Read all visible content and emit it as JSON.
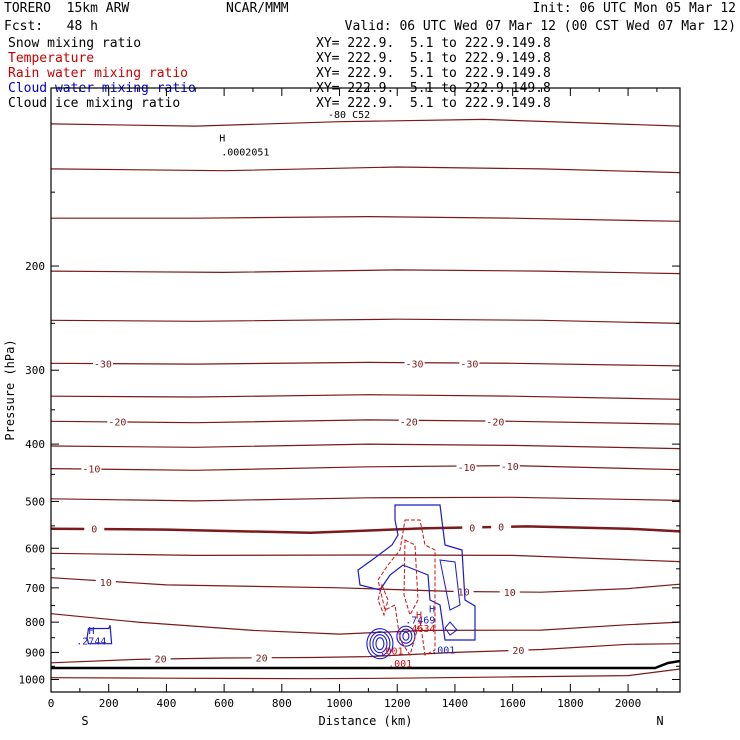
{
  "header": {
    "model": "TORERO  15km ARW",
    "org": "NCAR/MMM",
    "init": "Init: 06 UTC Mon 05 Mar 12",
    "fcst": "Fcst:   48 h",
    "valid": "Valid: 06 UTC Wed 07 Mar 12 (00 CST Wed 07 Mar 12)"
  },
  "fields": [
    {
      "name": "Snow mixing ratio",
      "xy": "XY= 222.9.  5.1 to 222.9.149.8",
      "color": "#000000"
    },
    {
      "name": "Temperature",
      "xy": "XY= 222.9.  5.1 to 222.9.149.8",
      "color": "#cc0000"
    },
    {
      "name": "Rain water mixing ratio",
      "xy": "XY= 222.9.  5.1 to 222.9.149.8",
      "color": "#cc0000"
    },
    {
      "name": "Cloud water mixing ratio",
      "xy": "XY= 222.9.  5.1 to 222.9.149.8",
      "color": "#0000cc"
    },
    {
      "name": "Cloud ice mixing ratio",
      "xy": "XY= 222.9.  5.1 to 222.9.149.8",
      "color": "#000000"
    }
  ],
  "chart_data": {
    "type": "line",
    "xlabel": "Distance (km)",
    "ylabel": "Pressure (hPa)",
    "xlim": [
      0,
      2180
    ],
    "ylim": [
      100,
      1050
    ],
    "yscale": "log-pressure",
    "xticks": [
      0,
      200,
      400,
      600,
      800,
      1000,
      1200,
      1400,
      1600,
      1800,
      2000
    ],
    "yticks": [
      200,
      300,
      400,
      500,
      600,
      700,
      800,
      900,
      1000
    ],
    "endpoint_labels": {
      "left": "S",
      "right": "N"
    },
    "temperature_contour_interval_C": 5,
    "isotherms": [
      {
        "level": -55,
        "points": [
          [
            0,
            115
          ],
          [
            500,
            116
          ],
          [
            1000,
            114
          ],
          [
            1500,
            113
          ],
          [
            2180,
            116
          ]
        ]
      },
      {
        "level": -50,
        "points": [
          [
            0,
            137
          ],
          [
            600,
            138
          ],
          [
            1200,
            136
          ],
          [
            1700,
            137
          ],
          [
            2180,
            139
          ]
        ]
      },
      {
        "level": -45,
        "points": [
          [
            0,
            166
          ],
          [
            500,
            166
          ],
          [
            1100,
            165
          ],
          [
            1600,
            166
          ],
          [
            2180,
            168
          ]
        ]
      },
      {
        "level": -40,
        "points": [
          [
            0,
            204
          ],
          [
            600,
            205
          ],
          [
            1200,
            203
          ],
          [
            1700,
            204
          ],
          [
            2180,
            206
          ]
        ]
      },
      {
        "level": -35,
        "points": [
          [
            0,
            247
          ],
          [
            500,
            248
          ],
          [
            1200,
            246
          ],
          [
            1700,
            247
          ],
          [
            2180,
            250
          ]
        ]
      },
      {
        "level": -30,
        "points": [
          [
            0,
            292
          ],
          [
            500,
            293
          ],
          [
            1100,
            291
          ],
          [
            1600,
            292
          ],
          [
            2180,
            295
          ]
        ]
      },
      {
        "level": -25,
        "points": [
          [
            0,
            332
          ],
          [
            500,
            333
          ],
          [
            1100,
            330
          ],
          [
            1600,
            332
          ],
          [
            2180,
            336
          ]
        ]
      },
      {
        "level": -20,
        "points": [
          [
            0,
            366
          ],
          [
            500,
            368
          ],
          [
            1100,
            364
          ],
          [
            1600,
            366
          ],
          [
            2180,
            370
          ]
        ]
      },
      {
        "level": -15,
        "points": [
          [
            0,
            403
          ],
          [
            500,
            405
          ],
          [
            1100,
            400
          ],
          [
            1600,
            402
          ],
          [
            2180,
            407
          ]
        ]
      },
      {
        "level": -10,
        "points": [
          [
            0,
            440
          ],
          [
            500,
            443
          ],
          [
            1100,
            437
          ],
          [
            1600,
            435
          ],
          [
            2180,
            442
          ]
        ]
      },
      {
        "level": -5,
        "points": [
          [
            0,
            495
          ],
          [
            500,
            499
          ],
          [
            1100,
            493
          ],
          [
            1600,
            492
          ],
          [
            2180,
            498
          ]
        ]
      },
      {
        "level": 0,
        "points": [
          [
            0,
            556
          ],
          [
            400,
            558
          ],
          [
            900,
            565
          ],
          [
            1300,
            555
          ],
          [
            1650,
            551
          ],
          [
            2000,
            556
          ],
          [
            2180,
            562
          ]
        ]
      },
      {
        "level": 5,
        "points": [
          [
            0,
            612
          ],
          [
            500,
            617
          ],
          [
            1100,
            616
          ],
          [
            1600,
            617
          ],
          [
            2180,
            632
          ]
        ]
      },
      {
        "level": 10,
        "points": [
          [
            0,
            673
          ],
          [
            400,
            692
          ],
          [
            1000,
            700
          ],
          [
            1400,
            710
          ],
          [
            1700,
            712
          ],
          [
            2000,
            702
          ],
          [
            2180,
            690
          ]
        ]
      },
      {
        "level": 15,
        "points": [
          [
            0,
            774
          ],
          [
            300,
            800
          ],
          [
            700,
            826
          ],
          [
            1000,
            838
          ],
          [
            1300,
            826
          ],
          [
            1700,
            825
          ],
          [
            2000,
            808
          ],
          [
            2180,
            800
          ]
        ]
      },
      {
        "level": 20,
        "points": [
          [
            0,
            937
          ],
          [
            300,
            925
          ],
          [
            600,
            920
          ],
          [
            900,
            918
          ],
          [
            1100,
            915
          ],
          [
            1400,
            900
          ],
          [
            1700,
            890
          ],
          [
            2000,
            872
          ],
          [
            2180,
            870
          ]
        ]
      },
      {
        "level": 25,
        "points": [
          [
            0,
            993
          ],
          [
            400,
            995
          ],
          [
            900,
            997
          ],
          [
            1200,
            995
          ],
          [
            1600,
            990
          ],
          [
            2000,
            985
          ],
          [
            2180,
            960
          ]
        ]
      }
    ],
    "temperature_labels": [
      {
        "text": "-30",
        "x": 180,
        "p": 292
      },
      {
        "text": "-30",
        "x": 1260,
        "p": 292
      },
      {
        "text": "-30",
        "x": 1450,
        "p": 292
      },
      {
        "text": "-20",
        "x": 230,
        "p": 366
      },
      {
        "text": "-20",
        "x": 1240,
        "p": 366
      },
      {
        "text": "-20",
        "x": 1540,
        "p": 366
      },
      {
        "text": "-10",
        "x": 140,
        "p": 440
      },
      {
        "text": "-10",
        "x": 1440,
        "p": 437
      },
      {
        "text": "-10",
        "x": 1590,
        "p": 436
      },
      {
        "text": "0",
        "x": 150,
        "p": 556
      },
      {
        "text": "0",
        "x": 1460,
        "p": 553
      },
      {
        "text": "0",
        "x": 1560,
        "p": 551
      },
      {
        "text": "10",
        "x": 190,
        "p": 684
      },
      {
        "text": "10",
        "x": 1430,
        "p": 710
      },
      {
        "text": "10",
        "x": 1590,
        "p": 711
      },
      {
        "text": "20",
        "x": 380,
        "p": 922
      },
      {
        "text": "20",
        "x": 730,
        "p": 918
      },
      {
        "text": "20",
        "x": 1620,
        "p": 892
      }
    ],
    "snow_max": {
      "text": ".0002051",
      "x": 590,
      "p": 128
    },
    "top_label": {
      "text": "-80 C52",
      "x": 960,
      "p": 116
    },
    "cloud_water_labels": [
      {
        "text": ".2744",
        "x": 150,
        "p": 860
      },
      {
        "text": ".7469",
        "x": 1290,
        "p": 792
      },
      {
        "text": ".001",
        "x": 1380,
        "p": 890
      }
    ],
    "cloud_water_box": [
      [
        130,
        820
      ],
      [
        200,
        820
      ],
      [
        205,
        810
      ],
      [
        210,
        870
      ],
      [
        130,
        870
      ],
      [
        125,
        850
      ]
    ],
    "rain_labels": [
      {
        "text": ".4634",
        "x": 1270,
        "p": 818
      },
      {
        "text": ".001",
        "x": 1180,
        "p": 893
      },
      {
        "text": ".001",
        "x": 1210,
        "p": 937
      }
    ]
  }
}
